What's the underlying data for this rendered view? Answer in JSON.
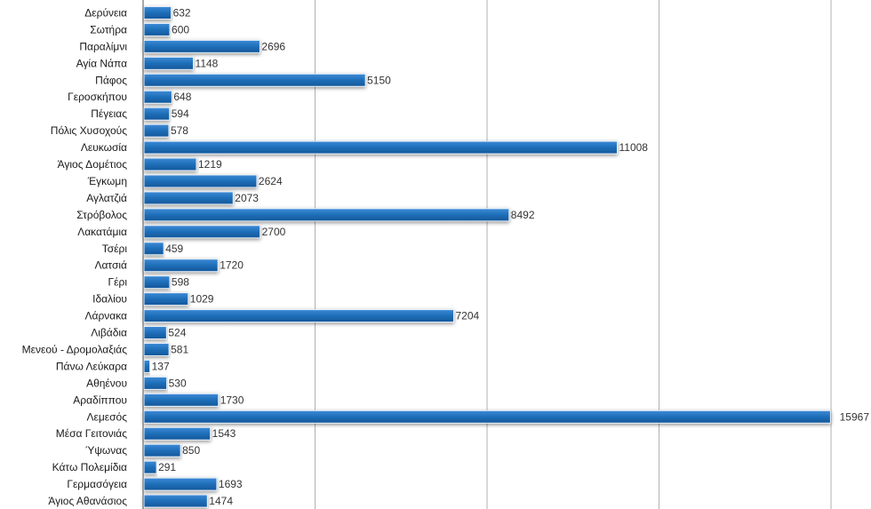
{
  "chart_data": {
    "type": "bar",
    "orientation": "horizontal",
    "categories": [
      "Δερύνεια",
      "Σωτήρα",
      "Παραλίμνι",
      "Αγία Νάπα",
      "Πάφος",
      "Γεροσκήπου",
      "Πέγειας",
      "Πόλις Χυσοχούς",
      "Λευκωσία",
      "Άγιος Δομέτιος",
      "Έγκωμη",
      "Αγλατζιά",
      "Στρόβολος",
      "Λακατάμια",
      "Τσέρι",
      "Λατσιά",
      "Γέρι",
      "Ιδαλίου",
      "Λάρνακα",
      "Λιβάδια",
      "Μενεού - Δρομολαξιάς",
      "Πάνω Λεύκαρα",
      "Αθηένου",
      "Αραδίππου",
      "Λεμεσός",
      "Μέσα Γειτονιάς",
      "Ύψωνας",
      "Κάτω Πολεμίδια",
      "Γερμασόγεια",
      "Άγιος Αθανάσιος"
    ],
    "values": [
      632,
      600,
      2696,
      1148,
      5150,
      648,
      594,
      578,
      11008,
      1219,
      2624,
      2073,
      8492,
      2700,
      459,
      1720,
      598,
      1029,
      7204,
      524,
      581,
      137,
      530,
      1730,
      15967,
      1543,
      850,
      291,
      1693,
      1474
    ],
    "value_labels": [
      "632",
      "600",
      "2696",
      "1148",
      "5150",
      "648",
      "594",
      "578",
      "11008",
      "1219",
      "2624",
      "2073",
      "8492",
      "2700",
      "459",
      "1720",
      "598",
      "1029",
      "7204",
      "524",
      "581",
      "137",
      "530",
      "1730",
      "15967",
      "1543",
      "850",
      "291",
      "1693",
      "1474"
    ],
    "xlim": [
      0,
      16000
    ],
    "grid": true,
    "bar_color": "#1e6eb8",
    "title": "",
    "xlabel": "",
    "ylabel": ""
  }
}
